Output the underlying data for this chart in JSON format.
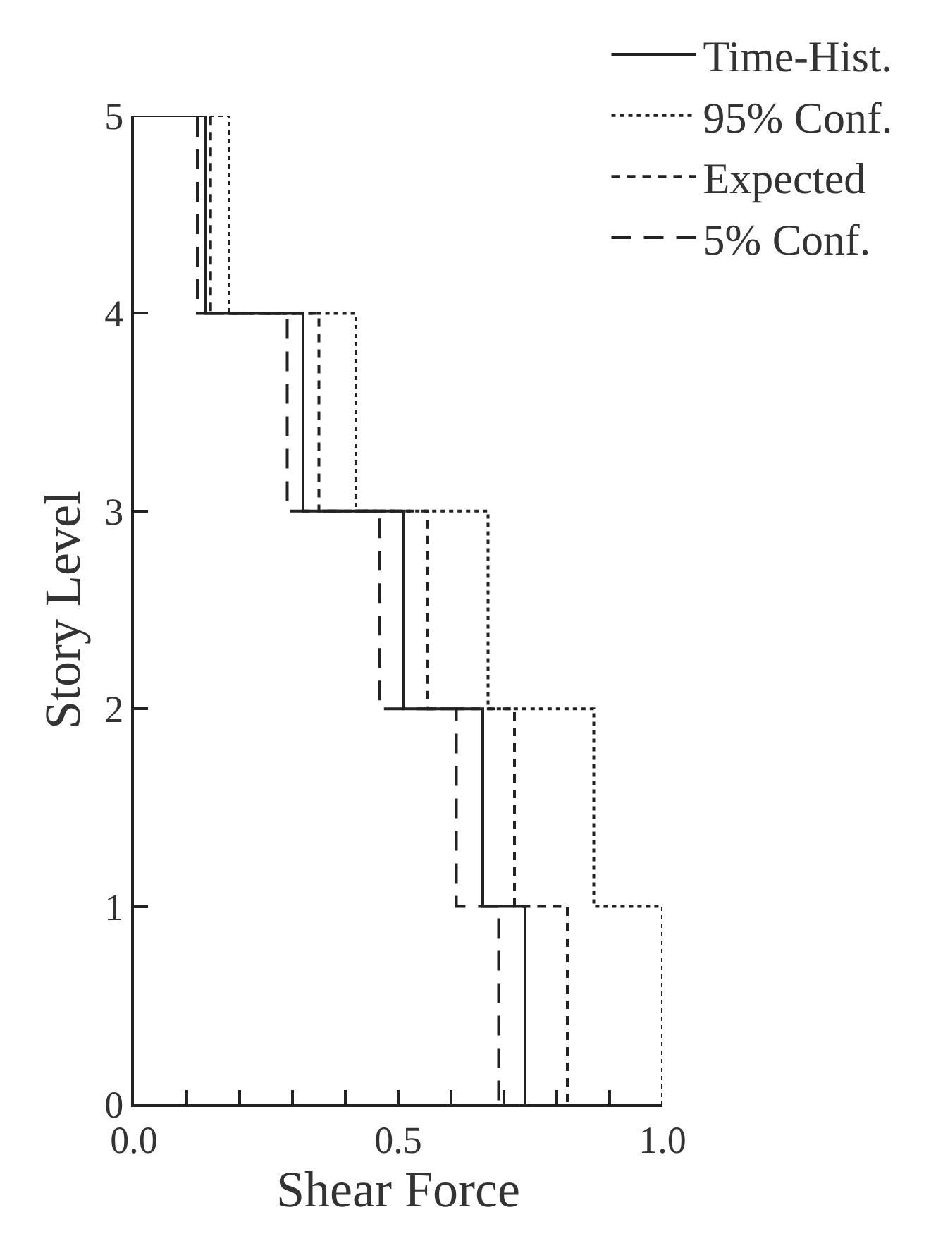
{
  "chart_data": {
    "type": "line",
    "xlabel": "Shear Force",
    "ylabel": "Story Level",
    "xlim": [
      0,
      1
    ],
    "xticks": [
      {
        "value": 0,
        "label": "0.0"
      },
      {
        "value": 0.1,
        "label": null
      },
      {
        "value": 0.2,
        "label": null
      },
      {
        "value": 0.3,
        "label": null
      },
      {
        "value": 0.4,
        "label": null
      },
      {
        "value": 0.5,
        "label": "0.5"
      },
      {
        "value": 0.6,
        "label": null
      },
      {
        "value": 0.7,
        "label": null
      },
      {
        "value": 0.8,
        "label": null
      },
      {
        "value": 0.9,
        "label": null
      },
      {
        "value": 1.0,
        "label": "1.0"
      }
    ],
    "ylim": [
      0,
      5
    ],
    "yticks": [
      0,
      1,
      2,
      3,
      4,
      5
    ],
    "legend": "top right",
    "marker": "none",
    "series": [
      {
        "name": "Time-Hist.",
        "color": "#222222",
        "line_style": "solid",
        "x": [
          0,
          0.135,
          0.135,
          0.32,
          0.32,
          0.51,
          0.51,
          0.66,
          0.66,
          0.74,
          0.74
        ],
        "values": [
          5,
          5,
          4,
          4,
          3,
          3,
          2,
          2,
          1,
          1,
          0
        ]
      },
      {
        "name": "95% Conf.",
        "color": "#222222",
        "line_style": "dotted",
        "x": [
          0,
          0.18,
          0.18,
          0.42,
          0.42,
          0.67,
          0.67,
          0.87,
          0.87,
          1.0,
          1.0
        ],
        "values": [
          5,
          5,
          4,
          4,
          3,
          3,
          2,
          2,
          1,
          1,
          0
        ]
      },
      {
        "name": "Expected",
        "color": "#222222",
        "line_style": "dashed",
        "x": [
          0,
          0.145,
          0.145,
          0.35,
          0.35,
          0.555,
          0.555,
          0.72,
          0.72,
          0.82,
          0.82
        ],
        "values": [
          5,
          5,
          4,
          4,
          3,
          3,
          2,
          2,
          1,
          1,
          0
        ]
      },
      {
        "name": "5% Conf.",
        "color": "#222222",
        "line_style": "long dashed",
        "x": [
          0,
          0.12,
          0.12,
          0.29,
          0.29,
          0.465,
          0.465,
          0.61,
          0.61,
          0.69,
          0.69
        ],
        "values": [
          5,
          5,
          4,
          4,
          3,
          3,
          2,
          2,
          1,
          1,
          0
        ]
      }
    ]
  }
}
